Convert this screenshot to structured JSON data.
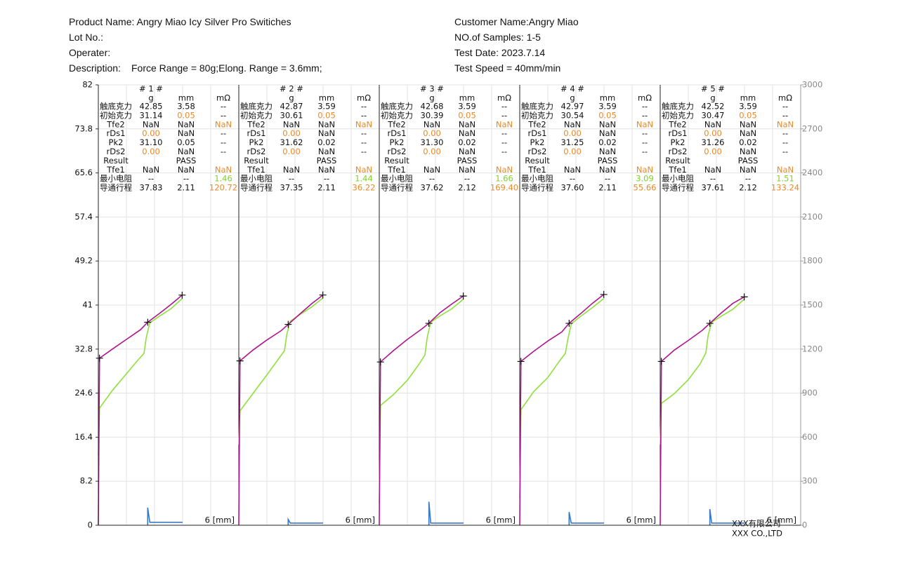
{
  "header": {
    "product_name": "Product Name: Angry Miao Icy Silver Pro Switiches",
    "lot_no": "Lot No.:",
    "operater": "Operater:",
    "description_label": "Description:",
    "description": "Force Range = 80g;Elong. Range = 3.6mm;",
    "customer_name": "Customer Name:Angry Miao",
    "samples": "NO.of Samples: 1-5",
    "test_date": "Test Date: 2023.7.14",
    "test_speed": "Test Speed = 40mm/min"
  },
  "chart": {
    "ylim": [
      0,
      82
    ],
    "yticks": [
      0,
      8.2,
      16.4,
      24.6,
      32.8,
      41,
      49.2,
      57.4,
      65.6,
      73.8,
      82
    ],
    "y2lim": [
      0,
      3000
    ],
    "y2ticks": [
      0,
      300,
      600,
      900,
      1200,
      1500,
      1800,
      2100,
      2400,
      2700,
      3000
    ],
    "xlim": [
      0,
      6
    ],
    "xticks": [
      0,
      1.2,
      2.4,
      3.6,
      4.8,
      6
    ],
    "x_label": "6 [mm]",
    "press_color": "#b0148c",
    "release_color": "#8ee03a",
    "resistance_color": "#3a78c8",
    "samples": [
      {
        "title": "# 1 #",
        "header": [
          null,
          "g",
          "mm",
          "mΩ"
        ],
        "rows": [
          [
            "触底克力",
            "42.85",
            "3.58",
            "--"
          ],
          [
            "初始克力",
            "31.14",
            "0.05",
            "--"
          ],
          [
            "Tfe2",
            "NaN",
            "NaN",
            "NaN"
          ],
          [
            "rDs1",
            "0.00",
            "NaN",
            "--"
          ],
          [
            "Pk2",
            "31.10",
            "0.05",
            "--"
          ],
          [
            "rDs2",
            "0.00",
            "NaN",
            "--"
          ],
          [
            "Result",
            null,
            "PASS",
            null
          ],
          [
            "Tfe1",
            "NaN",
            "NaN",
            "NaN"
          ],
          [
            "最小电阻",
            "--",
            "--",
            "1.46"
          ],
          [
            "导通行程",
            "37.83",
            "2.11",
            "120.72"
          ]
        ],
        "press": {
          "x": [
            0,
            0.05,
            0.6,
            1.2,
            1.8,
            2.11,
            2.6,
            3.1,
            3.58
          ],
          "y": [
            0,
            31.1,
            32.8,
            34.6,
            36.4,
            37.8,
            39.4,
            41.1,
            42.85
          ]
        },
        "release": {
          "x": [
            3.58,
            3.1,
            2.6,
            2.2,
            2.05,
            1.95,
            1.7,
            1.2,
            0.6,
            0.05,
            0
          ],
          "y": [
            42.2,
            40.3,
            38.9,
            37.7,
            35,
            32,
            30.8,
            28.2,
            25.1,
            21.8,
            13
          ]
        },
        "resistance": {
          "axis": "y2",
          "x": [
            2.11,
            2.11,
            2.2,
            3.6
          ],
          "y": [
            0,
            120,
            20,
            20
          ]
        }
      },
      {
        "title": "# 2 #",
        "header": [
          null,
          "g",
          "mm",
          "mΩ"
        ],
        "rows": [
          [
            "触底克力",
            "42.87",
            "3.59",
            "--"
          ],
          [
            "初始克力",
            "30.61",
            "0.05",
            "--"
          ],
          [
            "Tfe2",
            "NaN",
            "NaN",
            "NaN"
          ],
          [
            "rDs1",
            "0.00",
            "NaN",
            "--"
          ],
          [
            "Pk2",
            "31.62",
            "0.02",
            "--"
          ],
          [
            "rDs2",
            "0.00",
            "NaN",
            "--"
          ],
          [
            "Result",
            null,
            "PASS",
            null
          ],
          [
            "Tfe1",
            "NaN",
            "NaN",
            "NaN"
          ],
          [
            "最小电阻",
            "--",
            "--",
            "1.44"
          ],
          [
            "导通行程",
            "37.35",
            "2.11",
            "36.22"
          ]
        ],
        "press": {
          "x": [
            0,
            0.05,
            0.6,
            1.2,
            1.8,
            2.11,
            2.6,
            3.1,
            3.59
          ],
          "y": [
            0,
            30.6,
            32.6,
            34.5,
            36.2,
            37.4,
            39.3,
            41.2,
            42.87
          ]
        },
        "release": {
          "x": [
            3.59,
            3.1,
            2.6,
            2.2,
            2.05,
            1.95,
            1.7,
            1.2,
            0.6,
            0.05,
            0
          ],
          "y": [
            42.3,
            40.6,
            39.2,
            38,
            35.5,
            32.5,
            31,
            28,
            24.5,
            21.3,
            15
          ]
        },
        "resistance": {
          "axis": "y2",
          "x": [
            2.11,
            2.11,
            2.2,
            3.6
          ],
          "y": [
            0,
            40,
            15,
            15
          ]
        }
      },
      {
        "title": "# 3 #",
        "header": [
          null,
          "g",
          "mm",
          "mΩ"
        ],
        "rows": [
          [
            "触底克力",
            "42.68",
            "3.59",
            "--"
          ],
          [
            "初始克力",
            "30.39",
            "0.05",
            "--"
          ],
          [
            "Tfe2",
            "NaN",
            "NaN",
            "NaN"
          ],
          [
            "rDs1",
            "0.00",
            "NaN",
            "--"
          ],
          [
            "Pk2",
            "31.30",
            "0.02",
            "--"
          ],
          [
            "rDs2",
            "0.00",
            "NaN",
            "--"
          ],
          [
            "Result",
            null,
            "PASS",
            null
          ],
          [
            "Tfe1",
            "NaN",
            "NaN",
            "NaN"
          ],
          [
            "最小电阻",
            "--",
            "--",
            "1.66"
          ],
          [
            "导通行程",
            "37.62",
            "2.12",
            "169.40"
          ]
        ],
        "press": {
          "x": [
            0,
            0.05,
            0.6,
            1.2,
            1.8,
            2.12,
            2.6,
            3.1,
            3.59
          ],
          "y": [
            0,
            30.4,
            32.5,
            34.6,
            36.5,
            37.6,
            39.6,
            41.2,
            42.68
          ]
        },
        "release": {
          "x": [
            3.59,
            3.1,
            2.6,
            2.2,
            2.05,
            1.95,
            1.7,
            1.2,
            0.6,
            0.05,
            0
          ],
          "y": [
            42.1,
            40.3,
            39,
            37.8,
            35,
            31.7,
            30,
            27,
            24.3,
            22.3,
            4
          ]
        },
        "resistance": {
          "axis": "y2",
          "x": [
            2.12,
            2.12,
            2.2,
            3.6
          ],
          "y": [
            0,
            160,
            15,
            15
          ]
        }
      },
      {
        "title": "# 4 #",
        "header": [
          null,
          "g",
          "mm",
          "mΩ"
        ],
        "rows": [
          [
            "触底克力",
            "42.97",
            "3.59",
            "--"
          ],
          [
            "初始克力",
            "30.54",
            "0.05",
            "--"
          ],
          [
            "Tfe2",
            "NaN",
            "NaN",
            "NaN"
          ],
          [
            "rDs1",
            "0.00",
            "NaN",
            "--"
          ],
          [
            "Pk2",
            "31.25",
            "0.02",
            "--"
          ],
          [
            "rDs2",
            "0.00",
            "NaN",
            "--"
          ],
          [
            "Result",
            null,
            "PASS",
            null
          ],
          [
            "Tfe1",
            "NaN",
            "NaN",
            "NaN"
          ],
          [
            "最小电阻",
            "--",
            "--",
            "3.09"
          ],
          [
            "导通行程",
            "37.60",
            "2.11",
            "55.66"
          ]
        ],
        "press": {
          "x": [
            0,
            0.05,
            0.6,
            1.2,
            1.8,
            2.11,
            2.6,
            3.1,
            3.59
          ],
          "y": [
            0,
            30.5,
            32.4,
            34.3,
            36,
            37.6,
            39.4,
            41.3,
            42.97
          ]
        },
        "release": {
          "x": [
            3.59,
            3.1,
            2.6,
            2.2,
            2.05,
            1.95,
            1.7,
            1.2,
            0.6,
            0.05,
            0
          ],
          "y": [
            42.2,
            40.5,
            38.9,
            37.5,
            34.5,
            32,
            30.6,
            27.5,
            24.9,
            21.5,
            5
          ]
        },
        "resistance": {
          "axis": "y2",
          "x": [
            2.11,
            2.11,
            2.2,
            3.6
          ],
          "y": [
            0,
            90,
            15,
            15
          ]
        }
      },
      {
        "title": "# 5 #",
        "header": [
          null,
          "g",
          "mm",
          "mΩ"
        ],
        "rows": [
          [
            "触底克力",
            "42.52",
            "3.59",
            "--"
          ],
          [
            "初始克力",
            "30.47",
            "0.05",
            "--"
          ],
          [
            "Tfe2",
            "NaN",
            "NaN",
            "NaN"
          ],
          [
            "rDs1",
            "0.00",
            "NaN",
            "--"
          ],
          [
            "Pk2",
            "31.26",
            "0.02",
            "--"
          ],
          [
            "rDs2",
            "0.00",
            "NaN",
            "--"
          ],
          [
            "Result",
            null,
            "PASS",
            null
          ],
          [
            "Tfe1",
            "NaN",
            "NaN",
            "NaN"
          ],
          [
            "最小电阻",
            "--",
            "--",
            "1.51"
          ],
          [
            "导通行程",
            "37.61",
            "2.12",
            "133.24"
          ]
        ],
        "press": {
          "x": [
            0,
            0.05,
            0.6,
            1.2,
            1.8,
            2.12,
            2.6,
            3.1,
            3.59
          ],
          "y": [
            0,
            30.5,
            32.6,
            34.4,
            36.3,
            37.6,
            39.5,
            41.3,
            42.52
          ]
        },
        "release": {
          "x": [
            3.59,
            3.1,
            2.6,
            2.2,
            2.05,
            1.95,
            1.7,
            1.2,
            0.6,
            0.05,
            0
          ],
          "y": [
            42.1,
            40.2,
            38.9,
            37.8,
            35.4,
            32.1,
            30,
            27.1,
            24.5,
            22.7,
            15
          ]
        },
        "resistance": {
          "axis": "y2",
          "x": [
            2.12,
            2.12,
            2.2,
            3.6
          ],
          "y": [
            0,
            110,
            15,
            15
          ]
        }
      }
    ]
  },
  "footer": {
    "company_cn": "XXX有限公司",
    "company_en": "XXX CO.,LTD"
  }
}
